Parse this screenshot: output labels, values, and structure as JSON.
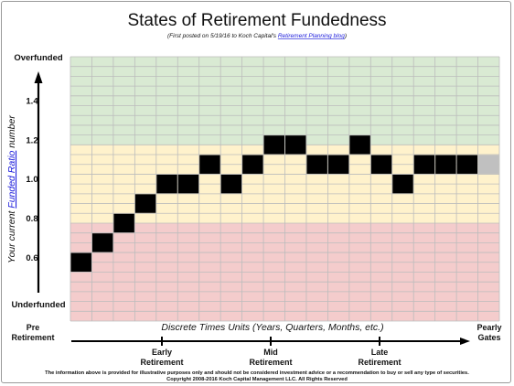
{
  "colors": {
    "overfunded_zone": "#d9ead3",
    "neutral_zone": "#fff2cc",
    "underfunded_zone": "#f4cccc",
    "grid": "#bcbcbc",
    "filled_cell": "#000000",
    "projected_cell": "#c0c0c0",
    "link": "#1a1adb"
  },
  "chart_data": {
    "type": "heatmap",
    "title": "States of Retirement Fundedness",
    "subtitle": {
      "prefix": "(First posted on 5/19/16 to Koch Capital's ",
      "link_text": "Retirement Planning blog",
      "suffix": ")"
    },
    "ylabel": {
      "prefix": "Your current ",
      "link_text": "Funded Ratio",
      "suffix": " number"
    },
    "xlabel": "Discrete Times Units (Years, Quarters, Months, etc.)",
    "y_top_label": "Overfunded",
    "y_bottom_label": "Underfunded",
    "y_ticks": [
      {
        "label": "1.4",
        "value": 1.4
      },
      {
        "label": "1.2",
        "value": 1.2
      },
      {
        "label": "1.0",
        "value": 1.0
      },
      {
        "label": "0.8",
        "value": 0.8
      },
      {
        "label": "0.6",
        "value": 0.6
      }
    ],
    "y_range": [
      0.3,
      1.65
    ],
    "row_step": 0.1,
    "columns": 20,
    "zones": [
      {
        "name": "overfunded",
        "from": 1.2,
        "to": 1.65
      },
      {
        "name": "neutral",
        "from": 0.8,
        "to": 1.2
      },
      {
        "name": "underfunded",
        "from": 0.3,
        "to": 0.8
      }
    ],
    "path_values": [
      0.6,
      0.7,
      0.8,
      0.9,
      1.0,
      1.0,
      1.1,
      1.0,
      1.1,
      1.2,
      1.2,
      1.1,
      1.1,
      1.2,
      1.1,
      1.0,
      1.1,
      1.1,
      1.1
    ],
    "projected": [
      {
        "column": 20,
        "value": 1.1
      }
    ],
    "timeline": {
      "start_label": [
        "Pre",
        "Retirement"
      ],
      "end_label": [
        "Pearly",
        "Gates"
      ],
      "markers": [
        {
          "label": [
            "Early",
            "Retirement"
          ],
          "position": 0.25
        },
        {
          "label": [
            "Mid",
            "Retirement"
          ],
          "position": 0.5
        },
        {
          "label": [
            "Late",
            "Retirement"
          ],
          "position": 0.75
        }
      ]
    }
  },
  "footer": {
    "disclaimer": "The information above is provided for illustrative purposes only and should not be considered investment advice or a recommendation to buy or sell any type of securities.",
    "copyright": "Copyright 2008-2016 Koch Capital Management LLC. All Rights Reserved"
  }
}
